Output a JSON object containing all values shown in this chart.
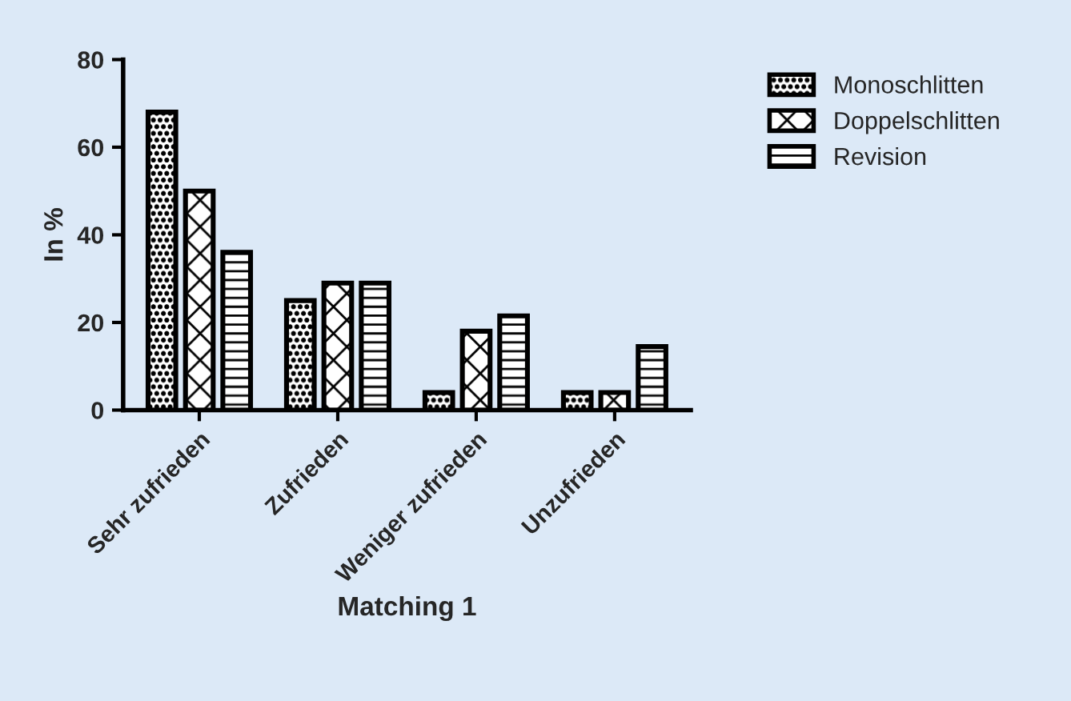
{
  "chart_data": {
    "type": "bar",
    "xlabel": "Matching 1",
    "ylabel": "In %",
    "categories": [
      "Sehr zufrieden",
      "Zufrieden",
      "Weniger zufrieden",
      "Unzufrieden"
    ],
    "series": [
      {
        "name": "Monoschlitten",
        "color": "#000000",
        "values": [
          68,
          25,
          4,
          4
        ]
      },
      {
        "name": "Doppelschlitten",
        "color": "#000000",
        "values": [
          50,
          29,
          18,
          4
        ]
      },
      {
        "name": "Revision",
        "color": "#000000",
        "values": [
          36,
          29,
          21.5,
          14.5
        ]
      }
    ],
    "ylim": [
      0,
      80
    ],
    "yticks": [
      0,
      20,
      40,
      60,
      80
    ],
    "grid": false,
    "legend": "top right"
  }
}
